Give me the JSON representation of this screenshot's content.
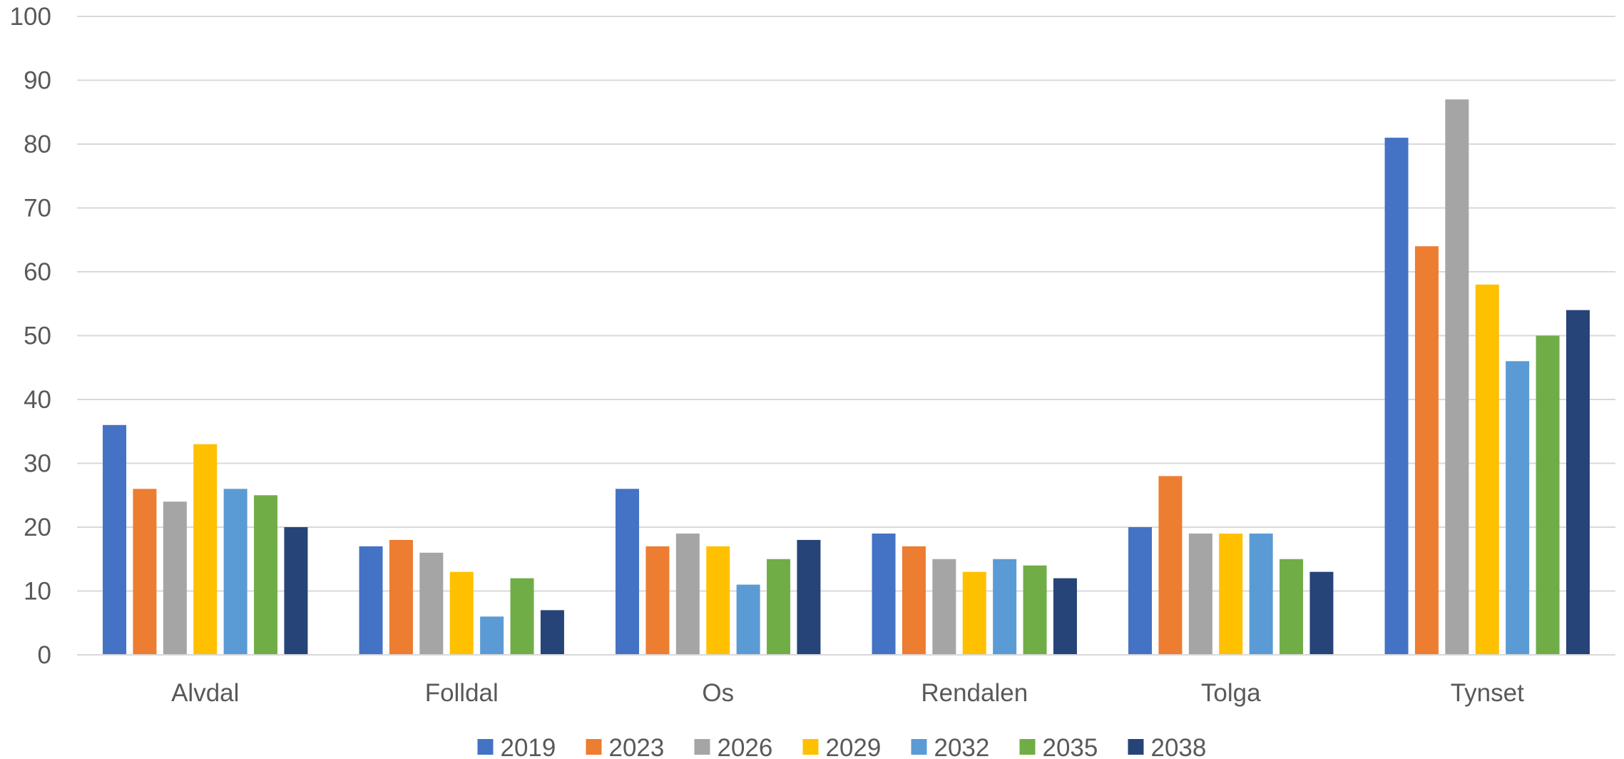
{
  "chart_data": {
    "type": "bar",
    "title": "",
    "xlabel": "",
    "ylabel": "",
    "categories": [
      "Alvdal",
      "Folldal",
      "Os",
      "Rendalen",
      "Tolga",
      "Tynset"
    ],
    "ylim": [
      0,
      100
    ],
    "yticks": [
      "0",
      "10",
      "20",
      "30",
      "40",
      "50",
      "60",
      "70",
      "80",
      "90",
      "100"
    ],
    "grid": true,
    "legend_position": "bottom",
    "series": [
      {
        "name": "2019",
        "color": "#4472C4",
        "values": [
          36,
          17,
          26,
          19,
          20,
          81
        ]
      },
      {
        "name": "2023",
        "color": "#ED7D31",
        "values": [
          26,
          18,
          17,
          17,
          28,
          64
        ]
      },
      {
        "name": "2026",
        "color": "#A5A5A5",
        "values": [
          24,
          16,
          19,
          15,
          19,
          87
        ]
      },
      {
        "name": "2029",
        "color": "#FFC000",
        "values": [
          33,
          13,
          17,
          13,
          19,
          58
        ]
      },
      {
        "name": "2032",
        "color": "#5B9BD5",
        "values": [
          26,
          6,
          11,
          15,
          19,
          46
        ]
      },
      {
        "name": "2035",
        "color": "#70AD47",
        "values": [
          25,
          12,
          15,
          14,
          15,
          50
        ]
      },
      {
        "name": "2038",
        "color": "#264478",
        "values": [
          20,
          7,
          18,
          12,
          13,
          54
        ]
      }
    ]
  }
}
